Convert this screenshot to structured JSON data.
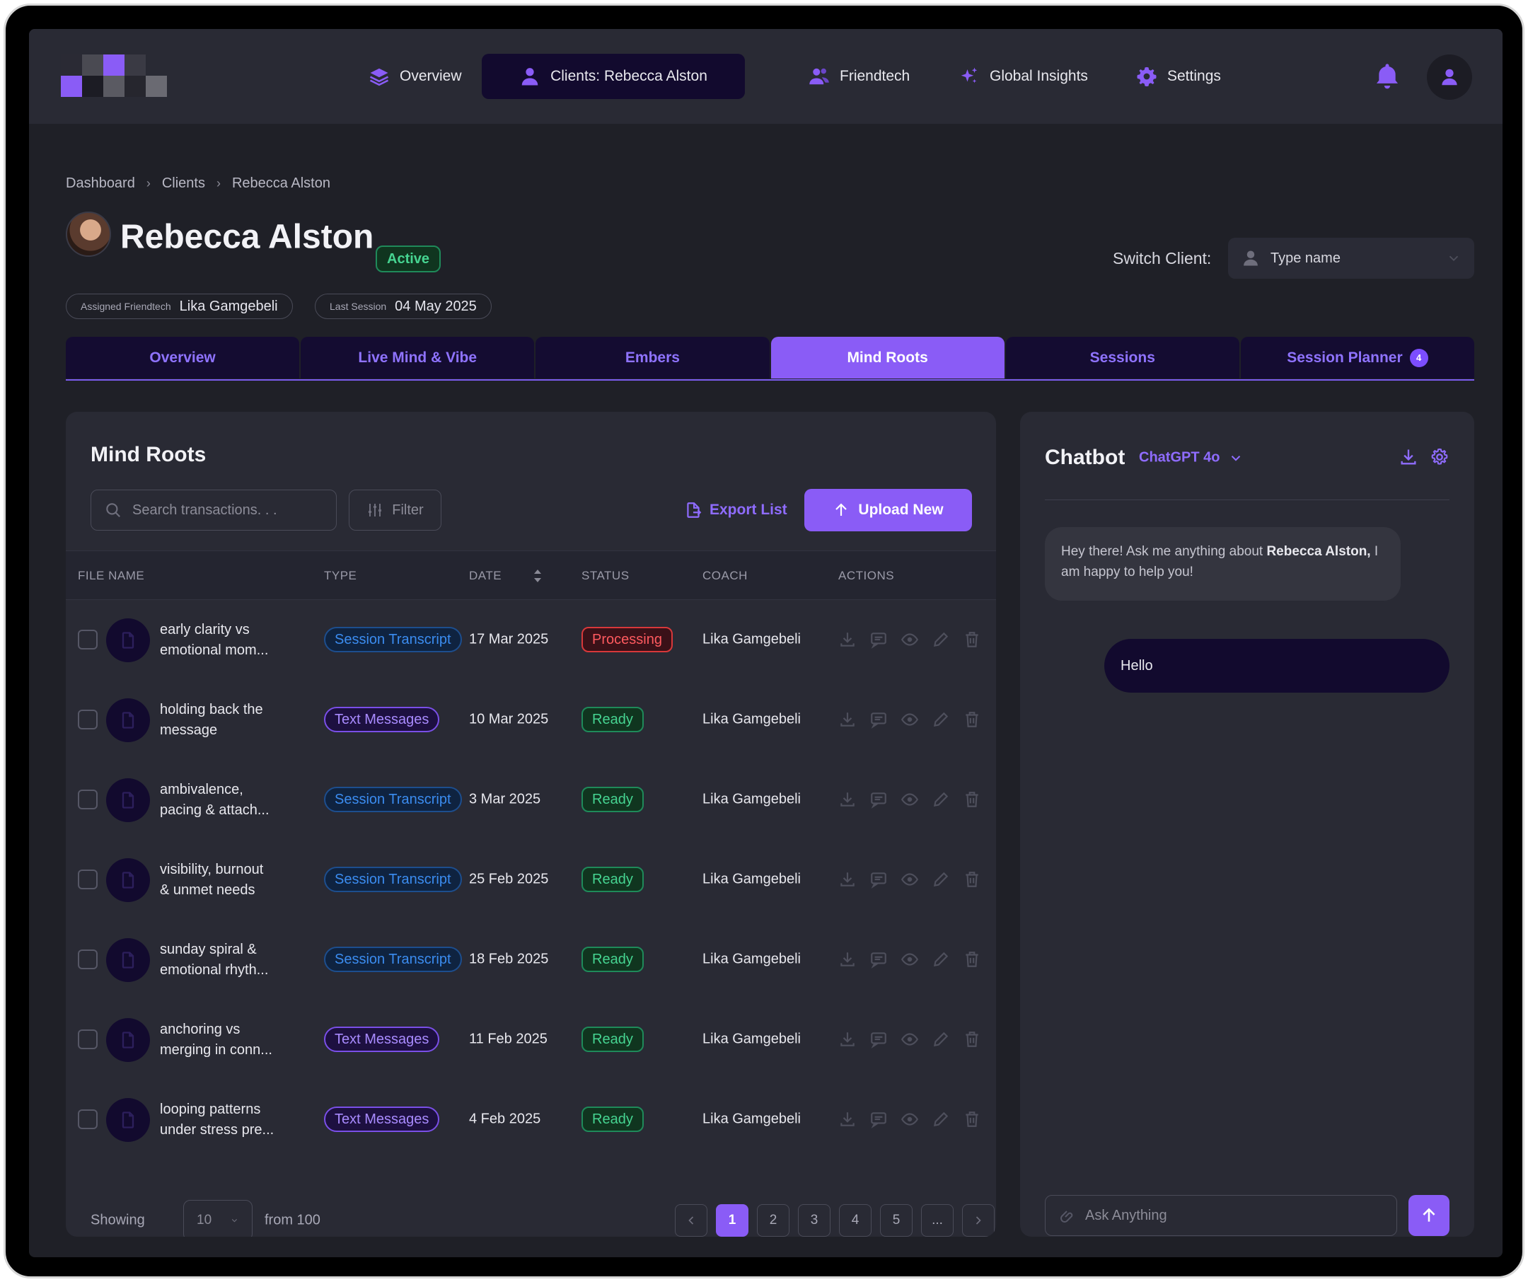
{
  "nav": {
    "items": [
      {
        "label": "Overview",
        "icon": "layers-icon"
      },
      {
        "label": "Clients: Rebecca Alston",
        "icon": "user-icon"
      },
      {
        "label": "Friendtech",
        "icon": "users-icon"
      },
      {
        "label": "Global Insights",
        "icon": "sparkles-icon"
      },
      {
        "label": "Settings",
        "icon": "gear-icon"
      }
    ],
    "active_index": 1
  },
  "breadcrumb": [
    "Dashboard",
    "Clients",
    "Rebecca Alston"
  ],
  "client": {
    "name": "Rebecca Alston",
    "status": "Active",
    "assigned_label": "Assigned Friendtech",
    "assigned_value": "Lika Gamgebeli",
    "last_session_label": "Last Session",
    "last_session_value": "04 May 2025"
  },
  "switch_client": {
    "label": "Switch Client:",
    "placeholder": "Type name"
  },
  "tabs": [
    {
      "label": "Overview"
    },
    {
      "label": "Live Mind & Vibe"
    },
    {
      "label": "Embers"
    },
    {
      "label": "Mind Roots"
    },
    {
      "label": "Sessions"
    },
    {
      "label": "Session Planner",
      "count": "4"
    }
  ],
  "active_tab": 3,
  "mind_roots": {
    "title": "Mind Roots",
    "search_placeholder": "Search transactions. . .",
    "filter_label": "Filter",
    "export_label": "Export List",
    "upload_label": "Upload New",
    "columns": [
      "FILE NAME",
      "TYPE",
      "DATE",
      "STATUS",
      "COACH",
      "ACTIONS"
    ],
    "rows": [
      {
        "name_1": "early clarity vs",
        "name_2": "emotional mom...",
        "type": "Session Transcript",
        "date": "17 Mar 2025",
        "status": "Processing",
        "coach": "Lika Gamgebeli"
      },
      {
        "name_1": "holding back the",
        "name_2": "message",
        "type": "Text Messages",
        "date": "10 Mar 2025",
        "status": "Ready",
        "coach": "Lika Gamgebeli"
      },
      {
        "name_1": "ambivalence,",
        "name_2": "pacing & attach...",
        "type": "Session Transcript",
        "date": "3 Mar 2025",
        "status": "Ready",
        "coach": "Lika Gamgebeli"
      },
      {
        "name_1": "visibility, burnout",
        "name_2": "& unmet needs",
        "type": "Session Transcript",
        "date": "25 Feb 2025",
        "status": "Ready",
        "coach": "Lika Gamgebeli"
      },
      {
        "name_1": "sunday spiral &",
        "name_2": "emotional rhyth...",
        "type": "Session Transcript",
        "date": "18 Feb 2025",
        "status": "Ready",
        "coach": "Lika Gamgebeli"
      },
      {
        "name_1": "anchoring vs",
        "name_2": "merging in conn...",
        "type": "Text Messages",
        "date": "11 Feb 2025",
        "status": "Ready",
        "coach": "Lika Gamgebeli"
      },
      {
        "name_1": "looping patterns",
        "name_2": "under stress pre...",
        "type": "Text Messages",
        "date": "4 Feb 2025",
        "status": "Ready",
        "coach": "Lika Gamgebeli"
      }
    ],
    "pagination": {
      "showing_label": "Showing",
      "per_page": "10",
      "from_label": "from 100",
      "pages": [
        "1",
        "2",
        "3",
        "4",
        "5",
        "..."
      ],
      "current": "1"
    }
  },
  "chatbot": {
    "title": "Chatbot",
    "model": "ChatGPT 4o",
    "bot_message_pre": "Hey there! Ask me anything about ",
    "bot_message_bold": "Rebecca Alston,",
    "bot_message_post": " I am happy to help you!",
    "user_message": "Hello",
    "input_placeholder": "Ask Anything"
  },
  "colors": {
    "accent": "#8a5cf6",
    "background": "#1f2027",
    "panel": "#292a34",
    "ready": "#46d491",
    "processing": "#ff5a5f",
    "session_transcript": "#3b8cf0",
    "text_messages": "#a98bff"
  }
}
